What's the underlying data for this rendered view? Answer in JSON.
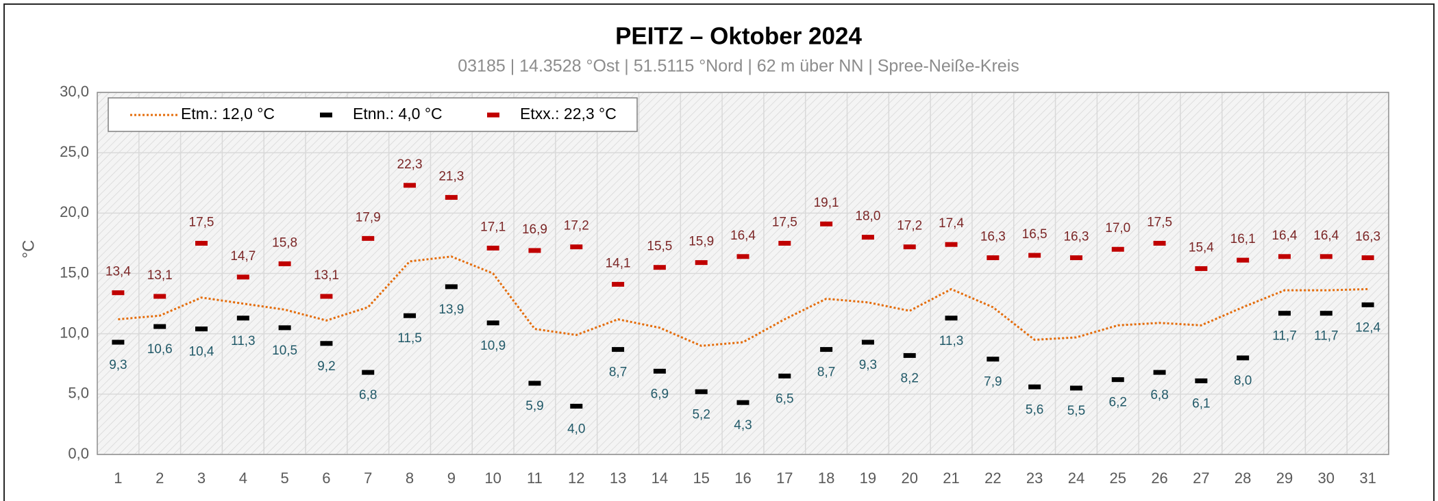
{
  "chart_data": {
    "type": "line",
    "title": "PEITZ   –   Oktober 2024",
    "subtitle": "03185  |  14.3528 °Ost  |  51.5115 °Nord  | 62 m über NN  |  Spree-Neiße-Kreis",
    "y_label": "°C",
    "categories": [
      "1",
      "2",
      "3",
      "4",
      "5",
      "6",
      "7",
      "8",
      "9",
      "10",
      "11",
      "12",
      "13",
      "14",
      "15",
      "16",
      "17",
      "18",
      "19",
      "20",
      "21",
      "22",
      "23",
      "24",
      "25",
      "26",
      "27",
      "28",
      "29",
      "30",
      "31"
    ],
    "ylim": [
      0,
      30
    ],
    "yticks": [
      {
        "value": 0,
        "label": "0,0"
      },
      {
        "value": 5,
        "label": "5,0"
      },
      {
        "value": 10,
        "label": "10,0"
      },
      {
        "value": 15,
        "label": "15,0"
      },
      {
        "value": 20,
        "label": "20,0"
      },
      {
        "value": 25,
        "label": "25,0"
      },
      {
        "value": 30,
        "label": "30,0"
      }
    ],
    "grid": true,
    "legend": "top-left",
    "series": [
      {
        "name": "Etm.: 12,0 °C",
        "color": "#e46c0a",
        "style": "dotted",
        "values": [
          11.2,
          11.5,
          13.0,
          12.5,
          12.0,
          11.1,
          12.2,
          16.0,
          16.4,
          15.0,
          10.4,
          9.9,
          11.2,
          10.5,
          9.0,
          9.3,
          11.2,
          12.9,
          12.6,
          11.9,
          13.7,
          12.2,
          9.5,
          9.7,
          10.7,
          10.9,
          10.7,
          12.2,
          13.6,
          13.6,
          13.7
        ]
      },
      {
        "name": "Etnn.: 4,0 °C",
        "color": "#000000",
        "style": "dash",
        "label_color": "#215968",
        "label_position": "below",
        "values": [
          9.3,
          10.6,
          10.4,
          11.3,
          10.5,
          9.2,
          6.8,
          11.5,
          13.9,
          10.9,
          5.9,
          4.0,
          8.7,
          6.9,
          5.2,
          4.3,
          6.5,
          8.7,
          9.3,
          8.2,
          11.3,
          7.9,
          5.6,
          5.5,
          6.2,
          6.8,
          6.1,
          8.0,
          11.7,
          11.7,
          12.4
        ],
        "value_labels": [
          "9,3",
          "10,6",
          "10,4",
          "11,3",
          "10,5",
          "9,2",
          "6,8",
          "11,5",
          "13,9",
          "10,9",
          "5,9",
          "4,0",
          "8,7",
          "6,9",
          "5,2",
          "4,3",
          "6,5",
          "8,7",
          "9,3",
          "8,2",
          "11,3",
          "7,9",
          "5,6",
          "5,5",
          "6,2",
          "6,8",
          "6,1",
          "8,0",
          "11,7",
          "11,7",
          "12,4"
        ]
      },
      {
        "name": "Etxx.: 22,3 °C",
        "color": "#c00000",
        "style": "dash",
        "label_color": "#7b2626",
        "label_position": "above",
        "values": [
          13.4,
          13.1,
          17.5,
          14.7,
          15.8,
          13.1,
          17.9,
          22.3,
          21.3,
          17.1,
          16.9,
          17.2,
          14.1,
          15.5,
          15.9,
          16.4,
          17.5,
          19.1,
          18.0,
          17.2,
          17.4,
          16.3,
          16.5,
          16.3,
          17.0,
          17.5,
          15.4,
          16.1,
          16.4,
          16.4,
          16.3
        ],
        "value_labels": [
          "13,4",
          "13,1",
          "17,5",
          "14,7",
          "15,8",
          "13,1",
          "17,9",
          "22,3",
          "21,3",
          "17,1",
          "16,9",
          "17,2",
          "14,1",
          "15,5",
          "15,9",
          "16,4",
          "17,5",
          "19,1",
          "18,0",
          "17,2",
          "17,4",
          "16,3",
          "16,5",
          "16,3",
          "17,0",
          "17,5",
          "15,4",
          "16,1",
          "16,4",
          "16,4",
          "16,3"
        ]
      }
    ]
  }
}
